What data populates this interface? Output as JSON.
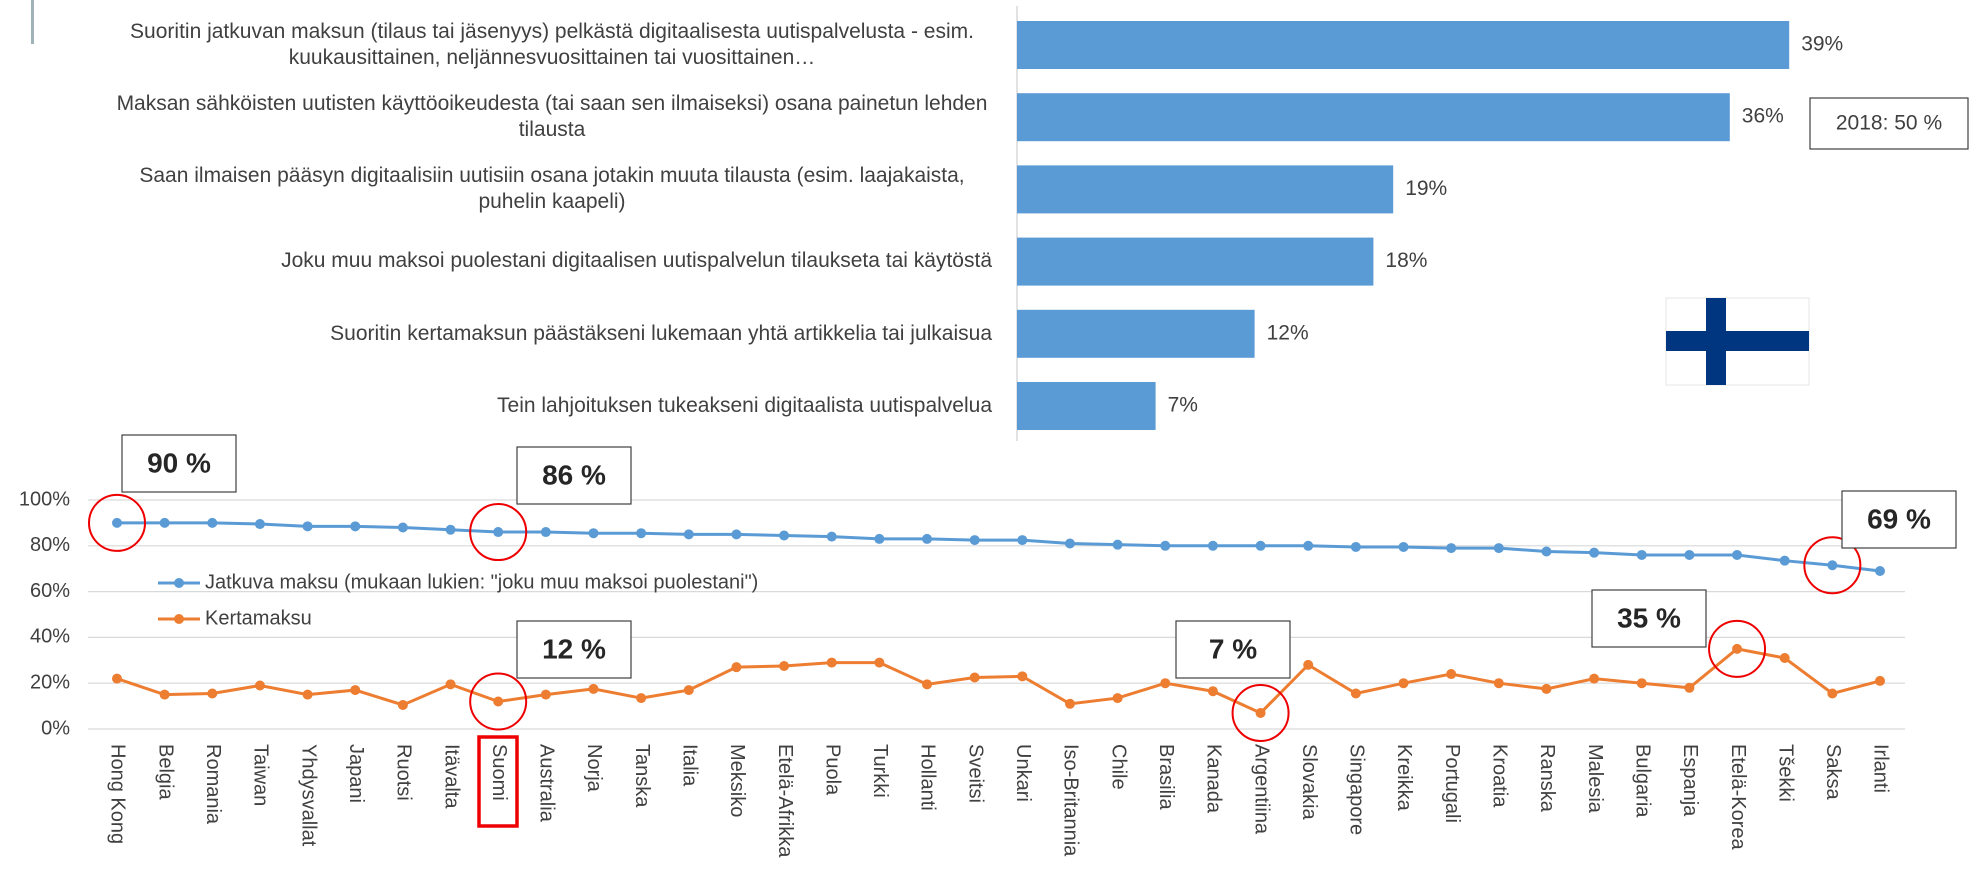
{
  "chart_data": [
    {
      "type": "bar",
      "orientation": "horizontal",
      "categories": [
        "Suoritin jatkuvan maksun (tilaus tai jäsenyys) pelkästä digitaalisesta uutispalvelusta - esim. kuukausittainen, neljännesvuosittainen tai vuosittainen…",
        "Maksan sähköisten uutisten käyttöoikeudesta (tai saan sen ilmaiseksi) osana painetun lehden tilausta",
        "Saan ilmaisen pääsyn digitaalisiin uutisiin osana jotakin muuta tilausta (esim. laajakaista, puhelin kaapeli)",
        "Joku muu maksoi puolestani digitaalisen uutispalvelun tilaukseta tai käytöstä",
        "Suoritin kertamaksun päästäkseni lukemaan yhtä artikkelia tai julkaisua",
        "Tein lahjoituksen tukeakseni digitaalista uutispalvelua"
      ],
      "values": [
        39,
        36,
        19,
        18,
        12,
        7
      ],
      "value_labels": [
        "39%",
        "36%",
        "19%",
        "18%",
        "12%",
        "7%"
      ],
      "color": "#5b9bd5",
      "xlim": [
        0,
        40
      ],
      "annotation": "2018: 50 %"
    },
    {
      "type": "line",
      "categories": [
        "Hong Kong",
        "Belgia",
        "Romania",
        "Taiwan",
        "Yhdysvallat",
        "Japani",
        "Ruotsi",
        "Itävalta",
        "Suomi",
        "Australia",
        "Norja",
        "Tanska",
        "Italia",
        "Meksiko",
        "Etelä-Afrikka",
        "Puola",
        "Turkki",
        "Hollanti",
        "Sveitsi",
        "Unkari",
        "Iso-Britannia",
        "Chile",
        "Brasilia",
        "Kanada",
        "Argentiina",
        "Slovakia",
        "Singapore",
        "Kreikka",
        "Portugali",
        "Kroatia",
        "Ranska",
        "Malesia",
        "Bulgaria",
        "Espanja",
        "Etelä-Korea",
        "Tšekki",
        "Saksa",
        "Irlanti"
      ],
      "series": [
        {
          "name": "Jatkuva maksu (mukaan lukien: \"joku muu maksoi puolestani\")",
          "color": "#5b9bd5",
          "values": [
            90,
            90,
            90,
            89.5,
            88.5,
            88.5,
            88,
            87,
            86,
            86,
            85.5,
            85.5,
            85,
            85,
            84.5,
            84,
            83,
            83,
            82.5,
            82.5,
            81,
            80.5,
            80,
            80,
            80,
            80,
            79.5,
            79.5,
            79,
            79,
            77.5,
            77,
            76,
            76,
            76,
            73.5,
            71.5,
            69
          ]
        },
        {
          "name": "Kertamaksu",
          "color": "#ed7d31",
          "values": [
            22,
            15,
            15.5,
            19,
            15,
            17,
            10.5,
            19.5,
            12,
            15,
            17.5,
            13.5,
            17,
            27,
            27.5,
            29,
            29,
            19.5,
            22.5,
            23,
            11,
            13.5,
            20,
            16.5,
            7,
            28,
            15.5,
            20,
            24,
            20,
            17.5,
            22,
            20,
            18,
            35,
            31,
            15.5,
            21
          ]
        }
      ],
      "ylim": [
        0,
        100
      ],
      "yticks": [
        {
          "value": 0,
          "label": "0%"
        },
        {
          "value": 20,
          "label": "20%"
        },
        {
          "value": 40,
          "label": "40%"
        },
        {
          "value": 60,
          "label": "60%"
        },
        {
          "value": 80,
          "label": "80%"
        },
        {
          "value": 100,
          "label": "100%"
        }
      ],
      "grid": true,
      "annotations": [
        "90 %",
        "86 %",
        "69 %",
        "12 %",
        "7 %",
        "35 %"
      ]
    }
  ]
}
